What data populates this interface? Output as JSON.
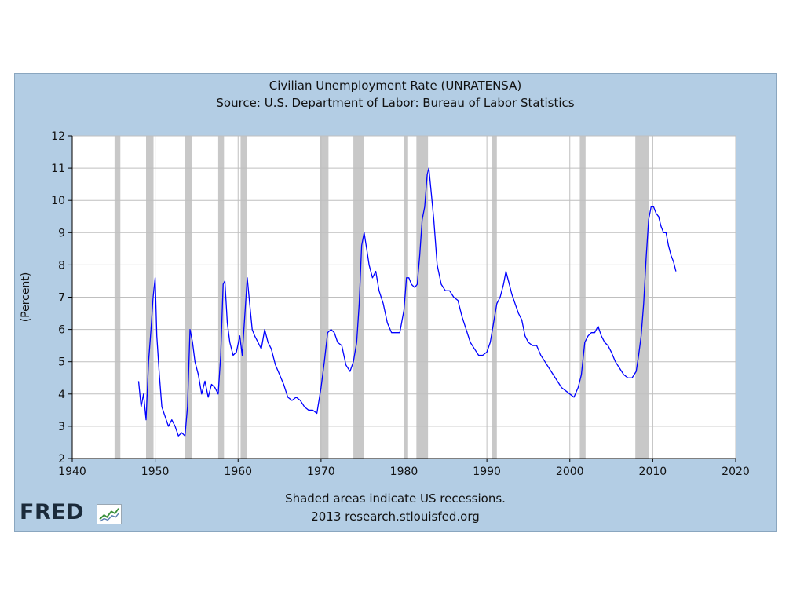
{
  "chart_data": {
    "type": "line",
    "title": "Civilian Unemployment Rate (UNRATENSA)",
    "subtitle": "Source: U.S. Department of Labor: Bureau of Labor Statistics",
    "xlabel": "",
    "ylabel": "(Percent)",
    "xlim": [
      1940,
      2020
    ],
    "ylim": [
      2,
      12
    ],
    "x_ticks": [
      1940,
      1950,
      1960,
      1970,
      1980,
      1990,
      2000,
      2010,
      2020
    ],
    "y_ticks": [
      2,
      3,
      4,
      5,
      6,
      7,
      8,
      9,
      10,
      11,
      12
    ],
    "grid": true,
    "series": [
      {
        "name": "Civilian Unemployment Rate (UNRATENSA)",
        "color": "#0000ff",
        "x": [
          1948.0,
          1948.3,
          1948.6,
          1948.9,
          1949.2,
          1949.5,
          1949.75,
          1950.0,
          1950.2,
          1950.5,
          1950.8,
          1951.2,
          1951.6,
          1952.0,
          1952.4,
          1952.8,
          1953.2,
          1953.6,
          1953.9,
          1954.2,
          1954.5,
          1954.8,
          1955.2,
          1955.6,
          1956.0,
          1956.4,
          1956.8,
          1957.2,
          1957.6,
          1957.9,
          1958.2,
          1958.4,
          1958.7,
          1959.0,
          1959.4,
          1959.8,
          1960.2,
          1960.5,
          1960.8,
          1961.1,
          1961.4,
          1961.7,
          1962.0,
          1962.4,
          1962.8,
          1963.2,
          1963.6,
          1964.0,
          1964.5,
          1965.0,
          1965.5,
          1966.0,
          1966.5,
          1967.0,
          1967.5,
          1968.0,
          1968.5,
          1969.0,
          1969.5,
          1970.0,
          1970.4,
          1970.8,
          1971.2,
          1971.6,
          1972.0,
          1972.5,
          1973.0,
          1973.5,
          1973.9,
          1974.3,
          1974.6,
          1974.9,
          1975.2,
          1975.5,
          1975.8,
          1976.2,
          1976.6,
          1977.0,
          1977.5,
          1978.0,
          1978.5,
          1979.0,
          1979.5,
          1980.0,
          1980.3,
          1980.6,
          1980.9,
          1981.3,
          1981.6,
          1981.9,
          1982.2,
          1982.5,
          1982.8,
          1983.0,
          1983.3,
          1983.6,
          1984.0,
          1984.5,
          1985.0,
          1985.5,
          1986.0,
          1986.5,
          1987.0,
          1987.5,
          1988.0,
          1988.5,
          1989.0,
          1989.5,
          1990.0,
          1990.4,
          1990.8,
          1991.2,
          1991.6,
          1992.0,
          1992.3,
          1992.6,
          1993.0,
          1993.4,
          1993.8,
          1994.2,
          1994.6,
          1995.0,
          1995.5,
          1996.0,
          1996.5,
          1997.0,
          1997.5,
          1998.0,
          1998.5,
          1999.0,
          1999.5,
          2000.0,
          2000.5,
          2001.0,
          2001.4,
          2001.8,
          2002.2,
          2002.6,
          2003.0,
          2003.4,
          2003.8,
          2004.2,
          2004.6,
          2005.0,
          2005.5,
          2006.0,
          2006.5,
          2007.0,
          2007.5,
          2008.0,
          2008.3,
          2008.6,
          2008.9,
          2009.2,
          2009.5,
          2009.8,
          2010.1,
          2010.4,
          2010.7,
          2011.0,
          2011.3,
          2011.6,
          2011.9,
          2012.2,
          2012.5,
          2012.8
        ],
        "y": [
          4.4,
          3.6,
          4.0,
          3.2,
          5.0,
          6.0,
          7.0,
          7.6,
          5.8,
          4.6,
          3.6,
          3.3,
          3.0,
          3.2,
          3.0,
          2.7,
          2.8,
          2.7,
          3.6,
          6.0,
          5.6,
          5.0,
          4.6,
          4.0,
          4.4,
          3.9,
          4.3,
          4.2,
          4.0,
          5.2,
          7.4,
          7.5,
          6.2,
          5.6,
          5.2,
          5.3,
          5.8,
          5.2,
          6.4,
          7.6,
          6.8,
          6.0,
          5.8,
          5.6,
          5.4,
          6.0,
          5.6,
          5.4,
          4.9,
          4.6,
          4.3,
          3.9,
          3.8,
          3.9,
          3.8,
          3.6,
          3.5,
          3.5,
          3.4,
          4.2,
          5.0,
          5.9,
          6.0,
          5.9,
          5.6,
          5.5,
          4.9,
          4.7,
          5.0,
          5.6,
          6.8,
          8.6,
          9.0,
          8.5,
          8.0,
          7.6,
          7.8,
          7.2,
          6.8,
          6.2,
          5.9,
          5.9,
          5.9,
          6.6,
          7.6,
          7.6,
          7.4,
          7.3,
          7.4,
          8.3,
          9.4,
          9.8,
          10.8,
          11.0,
          10.2,
          9.4,
          8.0,
          7.4,
          7.2,
          7.2,
          7.0,
          6.9,
          6.4,
          6.0,
          5.6,
          5.4,
          5.2,
          5.2,
          5.3,
          5.6,
          6.2,
          6.8,
          7.0,
          7.4,
          7.8,
          7.5,
          7.1,
          6.8,
          6.5,
          6.3,
          5.8,
          5.6,
          5.5,
          5.5,
          5.2,
          5.0,
          4.8,
          4.6,
          4.4,
          4.2,
          4.1,
          4.0,
          3.9,
          4.2,
          4.6,
          5.6,
          5.8,
          5.9,
          5.9,
          6.1,
          5.8,
          5.6,
          5.5,
          5.3,
          5.0,
          4.8,
          4.6,
          4.5,
          4.5,
          4.7,
          5.2,
          5.8,
          6.8,
          8.2,
          9.4,
          9.8,
          9.8,
          9.6,
          9.5,
          9.2,
          9.0,
          9.0,
          8.6,
          8.3,
          8.1,
          7.8
        ]
      }
    ],
    "recessions": [
      [
        1945.1,
        1945.8
      ],
      [
        1948.9,
        1949.8
      ],
      [
        1953.6,
        1954.4
      ],
      [
        1957.6,
        1958.3
      ],
      [
        1960.3,
        1961.1
      ],
      [
        1969.9,
        1970.9
      ],
      [
        1973.9,
        1975.2
      ],
      [
        1980.0,
        1980.5
      ],
      [
        1981.5,
        1982.9
      ],
      [
        1990.6,
        1991.2
      ],
      [
        2001.2,
        2001.9
      ],
      [
        2007.9,
        2009.5
      ]
    ]
  },
  "footer": {
    "note": "Shaded areas indicate US recessions.",
    "credit": "2013 research.stlouisfed.org"
  },
  "logo": {
    "text": "FRED"
  },
  "colors": {
    "panel_bg": "#b3cde4",
    "plot_bg": "#ffffff",
    "grid": "#bfbfbf",
    "recession": "#c8c8c8",
    "line": "#0000ff"
  }
}
